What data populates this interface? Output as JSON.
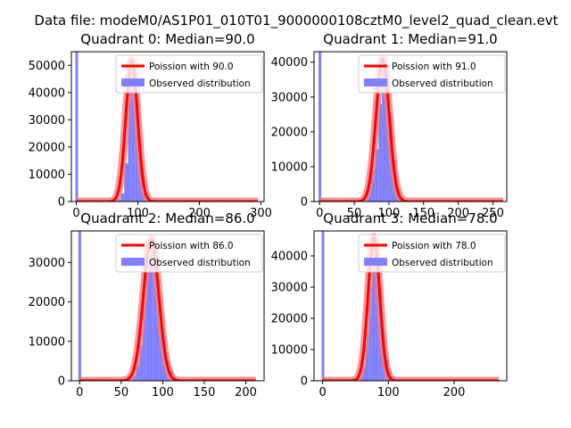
{
  "suptitle": "Data file: modeM0/AS1P01_010T01_9000000108cztM0_level2_quad_clean.evt",
  "colors": {
    "poisson": "#ff0000",
    "poisson_band": "#f08080",
    "observed": "#8080ff",
    "axis": "#000000"
  },
  "chart_data": [
    {
      "type": "bar",
      "title": "Quadrant 0: Median=90.0",
      "median": 90.0,
      "xlim": [
        -8,
        305
      ],
      "ylim": [
        0,
        55000
      ],
      "xticks": [
        0,
        100,
        200,
        300
      ],
      "yticks": [
        0,
        10000,
        20000,
        30000,
        40000,
        50000
      ],
      "legend": [
        "Poission with 90.0",
        "Observed distribution"
      ],
      "legend_position": "upper-right",
      "poisson": {
        "mean": 90.0,
        "peak": 52000,
        "x_range": [
          0,
          295
        ]
      },
      "observed": {
        "bin_width": 6,
        "spike": {
          "x": 0,
          "value": 55000
        },
        "bins": [
          [
            60,
            300
          ],
          [
            66,
            800
          ],
          [
            72,
            3000
          ],
          [
            78,
            14000
          ],
          [
            84,
            41000
          ],
          [
            90,
            50000
          ],
          [
            96,
            38000
          ],
          [
            102,
            14000
          ],
          [
            108,
            3500
          ],
          [
            114,
            800
          ],
          [
            120,
            200
          ]
        ]
      }
    },
    {
      "type": "bar",
      "title": "Quadrant 1: Median=91.0",
      "median": 91.0,
      "xlim": [
        -8,
        270
      ],
      "ylim": [
        0,
        43000
      ],
      "xticks": [
        0,
        50,
        100,
        150,
        200,
        250
      ],
      "yticks": [
        0,
        10000,
        20000,
        30000,
        40000
      ],
      "legend": [
        "Poission with 91.0",
        "Observed distribution"
      ],
      "legend_position": "upper-right",
      "poisson": {
        "mean": 91.0,
        "peak": 41000,
        "x_range": [
          0,
          265
        ]
      },
      "observed": {
        "bin_width": 5,
        "spike": {
          "x": 0,
          "value": 43000
        },
        "bins": [
          [
            60,
            400
          ],
          [
            65,
            1500
          ],
          [
            70,
            4500
          ],
          [
            75,
            9000
          ],
          [
            80,
            15000
          ],
          [
            85,
            28000
          ],
          [
            90,
            40000
          ],
          [
            95,
            37000
          ],
          [
            100,
            24000
          ],
          [
            105,
            10000
          ],
          [
            110,
            4000
          ],
          [
            115,
            1000
          ],
          [
            120,
            300
          ]
        ]
      }
    },
    {
      "type": "bar",
      "title": "Quadrant 2: Median=86.0",
      "median": 86.0,
      "xlim": [
        -10,
        222
      ],
      "ylim": [
        0,
        38000
      ],
      "xticks": [
        0,
        50,
        100,
        150,
        200
      ],
      "yticks": [
        0,
        10000,
        20000,
        30000
      ],
      "legend": [
        "Poission with 86.0",
        "Observed distribution"
      ],
      "legend_position": "upper-right",
      "poisson": {
        "mean": 86.0,
        "peak": 36000,
        "x_range": [
          0,
          212
        ]
      },
      "observed": {
        "bin_width": 4,
        "spike": {
          "x": 0,
          "value": 38000
        },
        "bins": [
          [
            60,
            300
          ],
          [
            64,
            1200
          ],
          [
            68,
            4000
          ],
          [
            72,
            9000
          ],
          [
            76,
            20000
          ],
          [
            80,
            28000
          ],
          [
            84,
            35000
          ],
          [
            88,
            33000
          ],
          [
            92,
            25000
          ],
          [
            96,
            15000
          ],
          [
            100,
            9000
          ],
          [
            104,
            5000
          ],
          [
            108,
            2500
          ],
          [
            112,
            1000
          ],
          [
            116,
            300
          ]
        ]
      }
    },
    {
      "type": "bar",
      "title": "Quadrant 3: Median=78.0",
      "median": 78.0,
      "xlim": [
        -13,
        280
      ],
      "ylim": [
        0,
        48000
      ],
      "xticks": [
        0,
        100,
        200
      ],
      "yticks": [
        0,
        10000,
        20000,
        30000,
        40000
      ],
      "legend": [
        "Poission with 78.0",
        "Observed distribution"
      ],
      "legend_position": "upper-right",
      "poisson": {
        "mean": 78.0,
        "peak": 46000,
        "x_range": [
          0,
          268
        ]
      },
      "observed": {
        "bin_width": 5,
        "spike": {
          "x": 0,
          "value": 48000
        },
        "bins": [
          [
            50,
            300
          ],
          [
            55,
            1000
          ],
          [
            60,
            4000
          ],
          [
            65,
            15000
          ],
          [
            70,
            30000
          ],
          [
            75,
            44000
          ],
          [
            80,
            40000
          ],
          [
            85,
            28000
          ],
          [
            90,
            15000
          ],
          [
            95,
            7000
          ],
          [
            100,
            3000
          ],
          [
            105,
            1000
          ],
          [
            110,
            300
          ]
        ]
      }
    }
  ]
}
